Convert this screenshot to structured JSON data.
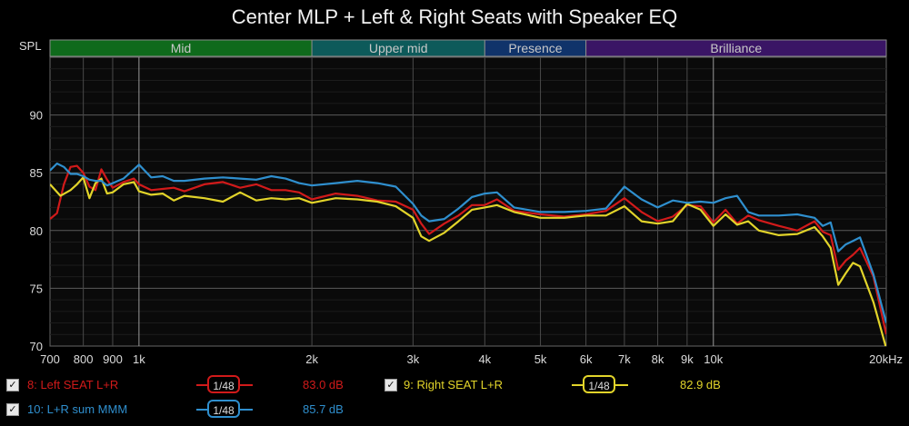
{
  "chart_data": {
    "type": "line",
    "title": "Center MLP + Left & Right Seats with Speaker EQ",
    "ylabel": "SPL",
    "xlabel": "",
    "x_scale": "log",
    "xlim": [
      700,
      20000
    ],
    "ylim": [
      70,
      95
    ],
    "grid": true,
    "x_ticks": [
      {
        "value": 700,
        "label": "700"
      },
      {
        "value": 800,
        "label": "800"
      },
      {
        "value": 900,
        "label": "900"
      },
      {
        "value": 1000,
        "label": "1k"
      },
      {
        "value": 2000,
        "label": "2k"
      },
      {
        "value": 3000,
        "label": "3k"
      },
      {
        "value": 4000,
        "label": "4k"
      },
      {
        "value": 5000,
        "label": "5k"
      },
      {
        "value": 6000,
        "label": "6k"
      },
      {
        "value": 7000,
        "label": "7k"
      },
      {
        "value": 8000,
        "label": "8k"
      },
      {
        "value": 9000,
        "label": "9k"
      },
      {
        "value": 10000,
        "label": "10k"
      },
      {
        "value": 20000,
        "label": "20kHz"
      }
    ],
    "y_ticks": [
      {
        "value": 70,
        "label": "70"
      },
      {
        "value": 75,
        "label": "75"
      },
      {
        "value": 80,
        "label": "80"
      },
      {
        "value": 85,
        "label": "85"
      },
      {
        "value": 90,
        "label": "90"
      }
    ],
    "bands": [
      {
        "label": "Mid",
        "from": 700,
        "to": 2000,
        "color": "#0f6a1c"
      },
      {
        "label": "Upper mid",
        "from": 2000,
        "to": 4000,
        "color": "#0d5a5a"
      },
      {
        "label": "Presence",
        "from": 4000,
        "to": 6000,
        "color": "#10336a"
      },
      {
        "label": "Brilliance",
        "from": 6000,
        "to": 20000,
        "color": "#3a1565"
      }
    ],
    "series": [
      {
        "name": "8: Left SEAT L+R",
        "color": "#d11a1a",
        "points": [
          [
            700,
            81
          ],
          [
            720,
            81.5
          ],
          [
            740,
            84
          ],
          [
            760,
            85.5
          ],
          [
            780,
            85.6
          ],
          [
            800,
            85
          ],
          [
            820,
            83.8
          ],
          [
            840,
            83.5
          ],
          [
            860,
            85.3
          ],
          [
            880,
            84.4
          ],
          [
            900,
            83.7
          ],
          [
            940,
            84.2
          ],
          [
            980,
            84.5
          ],
          [
            1000,
            84
          ],
          [
            1050,
            83.5
          ],
          [
            1100,
            83.6
          ],
          [
            1150,
            83.7
          ],
          [
            1200,
            83.4
          ],
          [
            1300,
            84
          ],
          [
            1400,
            84.2
          ],
          [
            1500,
            83.7
          ],
          [
            1600,
            84
          ],
          [
            1700,
            83.5
          ],
          [
            1800,
            83.5
          ],
          [
            1900,
            83.3
          ],
          [
            2000,
            82.7
          ],
          [
            2200,
            83.2
          ],
          [
            2400,
            83
          ],
          [
            2600,
            82.6
          ],
          [
            2800,
            82.5
          ],
          [
            3000,
            81.8
          ],
          [
            3100,
            80.6
          ],
          [
            3200,
            79.7
          ],
          [
            3400,
            80.6
          ],
          [
            3600,
            81.3
          ],
          [
            3800,
            82.2
          ],
          [
            4000,
            82.2
          ],
          [
            4200,
            82.7
          ],
          [
            4500,
            81.7
          ],
          [
            5000,
            81.4
          ],
          [
            5500,
            81.2
          ],
          [
            6000,
            81.4
          ],
          [
            6500,
            81.7
          ],
          [
            7000,
            82.8
          ],
          [
            7500,
            81.6
          ],
          [
            8000,
            80.8
          ],
          [
            8500,
            81.2
          ],
          [
            9000,
            82.2
          ],
          [
            9500,
            82.1
          ],
          [
            10000,
            80.7
          ],
          [
            10500,
            81.8
          ],
          [
            11000,
            80.6
          ],
          [
            11500,
            81.3
          ],
          [
            12000,
            80.9
          ],
          [
            13000,
            80.4
          ],
          [
            14000,
            80
          ],
          [
            15000,
            80.8
          ],
          [
            15500,
            79.9
          ],
          [
            16000,
            79.6
          ],
          [
            16500,
            76.6
          ],
          [
            17000,
            77.4
          ],
          [
            17500,
            77.9
          ],
          [
            18000,
            78.5
          ],
          [
            19000,
            76
          ],
          [
            20000,
            71
          ]
        ]
      },
      {
        "name": "9: Right SEAT L+R",
        "color": "#e2d42a",
        "points": [
          [
            700,
            84
          ],
          [
            730,
            83
          ],
          [
            760,
            83.5
          ],
          [
            780,
            84
          ],
          [
            800,
            84.6
          ],
          [
            820,
            82.8
          ],
          [
            840,
            84.1
          ],
          [
            860,
            84.5
          ],
          [
            880,
            83.2
          ],
          [
            900,
            83.3
          ],
          [
            940,
            84
          ],
          [
            980,
            84.2
          ],
          [
            1000,
            83.4
          ],
          [
            1050,
            83.1
          ],
          [
            1100,
            83.2
          ],
          [
            1150,
            82.6
          ],
          [
            1200,
            83
          ],
          [
            1300,
            82.8
          ],
          [
            1400,
            82.5
          ],
          [
            1500,
            83.3
          ],
          [
            1600,
            82.6
          ],
          [
            1700,
            82.8
          ],
          [
            1800,
            82.7
          ],
          [
            1900,
            82.8
          ],
          [
            2000,
            82.4
          ],
          [
            2200,
            82.8
          ],
          [
            2400,
            82.7
          ],
          [
            2600,
            82.5
          ],
          [
            2800,
            82.1
          ],
          [
            3000,
            81.1
          ],
          [
            3100,
            79.5
          ],
          [
            3200,
            79.1
          ],
          [
            3400,
            79.8
          ],
          [
            3600,
            80.8
          ],
          [
            3800,
            81.8
          ],
          [
            4000,
            82
          ],
          [
            4200,
            82.2
          ],
          [
            4500,
            81.6
          ],
          [
            5000,
            81.1
          ],
          [
            5500,
            81.1
          ],
          [
            6000,
            81.3
          ],
          [
            6500,
            81.3
          ],
          [
            7000,
            82.1
          ],
          [
            7500,
            80.8
          ],
          [
            8000,
            80.6
          ],
          [
            8500,
            80.8
          ],
          [
            9000,
            82.3
          ],
          [
            9500,
            81.8
          ],
          [
            10000,
            80.4
          ],
          [
            10500,
            81.4
          ],
          [
            11000,
            80.5
          ],
          [
            11500,
            80.8
          ],
          [
            12000,
            80
          ],
          [
            13000,
            79.6
          ],
          [
            14000,
            79.7
          ],
          [
            15000,
            80.3
          ],
          [
            15500,
            79.5
          ],
          [
            16000,
            78.5
          ],
          [
            16500,
            75.3
          ],
          [
            17000,
            76.3
          ],
          [
            17500,
            77.2
          ],
          [
            18000,
            76.9
          ],
          [
            19000,
            73.8
          ],
          [
            20000,
            69.8
          ]
        ]
      },
      {
        "name": "10: L+R sum MMM",
        "color": "#2f8fce",
        "points": [
          [
            700,
            85.2
          ],
          [
            720,
            85.8
          ],
          [
            740,
            85.5
          ],
          [
            760,
            84.9
          ],
          [
            780,
            84.9
          ],
          [
            800,
            84.7
          ],
          [
            820,
            84.4
          ],
          [
            840,
            84.3
          ],
          [
            860,
            84.3
          ],
          [
            880,
            83.9
          ],
          [
            900,
            84.1
          ],
          [
            940,
            84.5
          ],
          [
            980,
            85.3
          ],
          [
            1000,
            85.7
          ],
          [
            1050,
            84.6
          ],
          [
            1100,
            84.7
          ],
          [
            1150,
            84.3
          ],
          [
            1200,
            84.3
          ],
          [
            1300,
            84.5
          ],
          [
            1400,
            84.6
          ],
          [
            1500,
            84.5
          ],
          [
            1600,
            84.4
          ],
          [
            1700,
            84.7
          ],
          [
            1800,
            84.5
          ],
          [
            1900,
            84.1
          ],
          [
            2000,
            83.9
          ],
          [
            2200,
            84.1
          ],
          [
            2400,
            84.3
          ],
          [
            2600,
            84.1
          ],
          [
            2800,
            83.8
          ],
          [
            3000,
            82.3
          ],
          [
            3100,
            81.3
          ],
          [
            3200,
            80.8
          ],
          [
            3400,
            81
          ],
          [
            3600,
            81.9
          ],
          [
            3800,
            82.9
          ],
          [
            4000,
            83.2
          ],
          [
            4200,
            83.3
          ],
          [
            4500,
            82
          ],
          [
            5000,
            81.6
          ],
          [
            5500,
            81.6
          ],
          [
            6000,
            81.7
          ],
          [
            6500,
            81.9
          ],
          [
            7000,
            83.8
          ],
          [
            7500,
            82.7
          ],
          [
            8000,
            82
          ],
          [
            8500,
            82.6
          ],
          [
            9000,
            82.4
          ],
          [
            9500,
            82.5
          ],
          [
            10000,
            82.4
          ],
          [
            10500,
            82.8
          ],
          [
            11000,
            83
          ],
          [
            11500,
            81.6
          ],
          [
            12000,
            81.3
          ],
          [
            13000,
            81.3
          ],
          [
            14000,
            81.4
          ],
          [
            15000,
            81.1
          ],
          [
            15500,
            80.4
          ],
          [
            16000,
            80.7
          ],
          [
            16500,
            78.2
          ],
          [
            17000,
            78.8
          ],
          [
            17500,
            79.1
          ],
          [
            18000,
            79.4
          ],
          [
            19000,
            76.2
          ],
          [
            20000,
            72
          ]
        ]
      }
    ]
  },
  "legend": [
    {
      "label": "8: Left SEAT L+R",
      "value": "83.0 dB",
      "color": "#d11a1a",
      "checked": true,
      "smoothing": "1/48"
    },
    {
      "label": "9: Right SEAT L+R",
      "value": "82.9 dB",
      "color": "#e2d42a",
      "checked": true,
      "smoothing": "1/48"
    },
    {
      "label": "10: L+R sum MMM",
      "value": "85.7 dB",
      "color": "#2f8fce",
      "checked": true,
      "smoothing": "1/48"
    }
  ]
}
